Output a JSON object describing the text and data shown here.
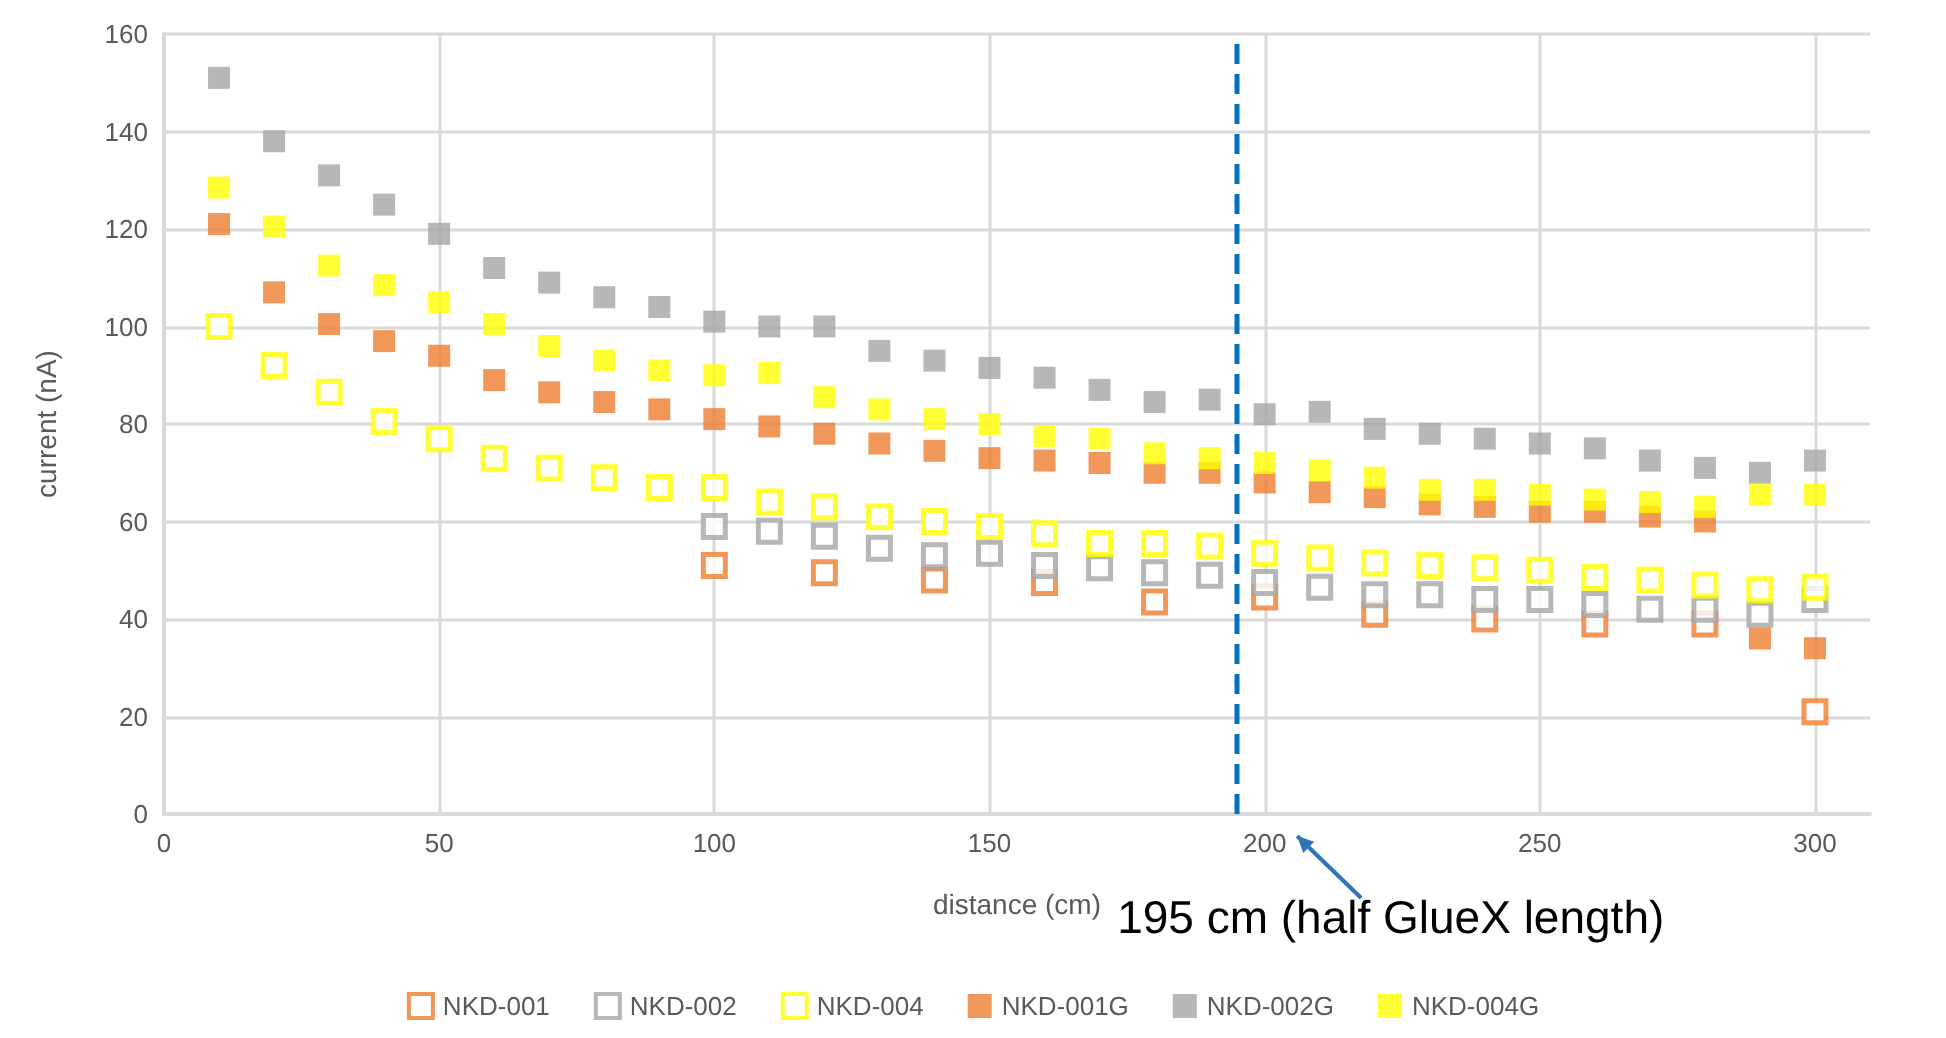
{
  "chart_data": {
    "type": "scatter",
    "xlabel": "distance (cm)",
    "ylabel": "current (nA)",
    "xlim": [
      0,
      310
    ],
    "xticks": [
      0,
      50,
      100,
      150,
      200,
      250,
      300
    ],
    "ylim": [
      0,
      160
    ],
    "yticks": [
      0,
      20,
      40,
      60,
      80,
      100,
      120,
      140,
      160
    ],
    "grid": true,
    "legend": "bottom",
    "marker": "square",
    "x": [
      10,
      20,
      30,
      40,
      50,
      60,
      70,
      80,
      90,
      100,
      110,
      120,
      130,
      140,
      150,
      160,
      170,
      180,
      190,
      200,
      210,
      220,
      230,
      240,
      250,
      260,
      270,
      280,
      290,
      300
    ],
    "series": [
      {
        "name": "NKD-001",
        "color": "#ed7d31",
        "x": [
          100,
          120,
          140,
          160,
          180,
          200,
          220,
          240,
          260,
          280,
          300
        ],
        "values": [
          51,
          49.5,
          48,
          47.5,
          43.5,
          44.5,
          41,
          40,
          39,
          39,
          21
        ]
      },
      {
        "name": "NKD-002",
        "color": "#a5a5a5",
        "x": [
          100,
          110,
          120,
          130,
          140,
          150,
          160,
          170,
          180,
          190,
          200,
          210,
          220,
          230,
          240,
          250,
          260,
          270,
          280,
          290,
          300
        ],
        "values": [
          59,
          58,
          57,
          54.5,
          53,
          53.5,
          51,
          50.5,
          49.5,
          49,
          47.5,
          46.5,
          45,
          45,
          44,
          44,
          43,
          42,
          42,
          41,
          44
        ]
      },
      {
        "name": "NKD-004",
        "color": "#ffff00",
        "values": [
          100,
          92,
          86.5,
          80.5,
          77,
          73,
          71,
          69,
          67,
          67,
          64,
          63,
          61,
          60,
          59,
          57.5,
          55.5,
          55.5,
          55,
          53.5,
          52.5,
          51.5,
          51,
          50.5,
          50,
          48.5,
          48,
          47,
          46,
          46.5
        ]
      },
      {
        "name": "NKD-001G",
        "color": "#ed7d31",
        "values": [
          121,
          107,
          100.5,
          97,
          94,
          89,
          86.5,
          84.5,
          83,
          81,
          79.5,
          78,
          76,
          74.5,
          73,
          72.5,
          72,
          70,
          70,
          68,
          66,
          65,
          63.5,
          63,
          62,
          62,
          61,
          60,
          36,
          34
        ]
      },
      {
        "name": "NKD-002G",
        "color": "#a5a5a5",
        "values": [
          151,
          138,
          131,
          125,
          119,
          112,
          109,
          106,
          104,
          101,
          100,
          100,
          95,
          93,
          91.5,
          89.5,
          87,
          84.5,
          85,
          82,
          82.5,
          79,
          78,
          77,
          76,
          75,
          72.5,
          71,
          70,
          72.5
        ]
      },
      {
        "name": "NKD-004G",
        "color": "#ffff00",
        "values": [
          128.5,
          120.5,
          112.5,
          108.5,
          105,
          100.5,
          96,
          93,
          91,
          90,
          90.5,
          85.5,
          83,
          81,
          80,
          77.5,
          77,
          74,
          73,
          72,
          70.5,
          69,
          66.5,
          66.5,
          65.5,
          64.5,
          64,
          63,
          65.5,
          65.5
        ]
      }
    ],
    "ref_lines": [
      {
        "axis": "x",
        "value": 195,
        "color": "#0070c0",
        "line_style": "dashed"
      }
    ],
    "annotations": [
      {
        "text": "195 cm (half GlueX length)",
        "x": 195,
        "y": 0
      }
    ]
  }
}
